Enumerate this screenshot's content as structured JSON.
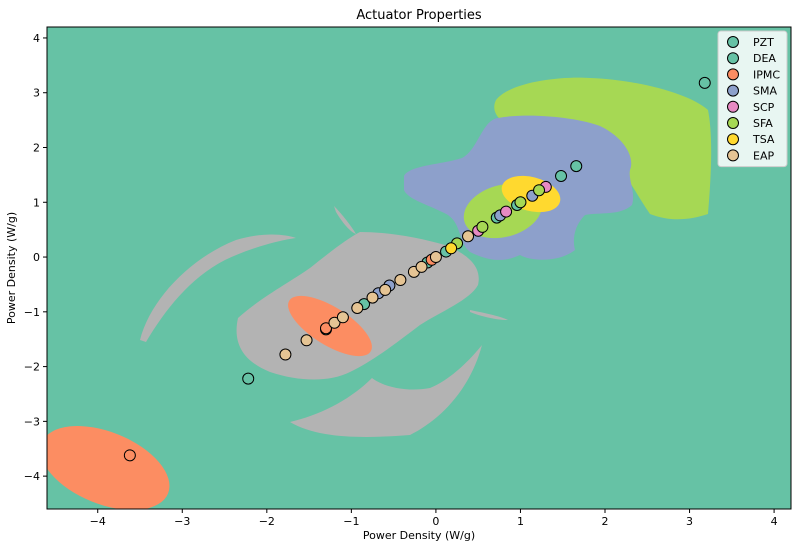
{
  "chart_data": {
    "type": "scatter",
    "title": "Actuator Properties",
    "xlabel": "Power Density (W/g)",
    "ylabel": "Power Density (W/g)",
    "xlim": [
      -4.6,
      4.2
    ],
    "ylim": [
      -4.6,
      4.2
    ],
    "xticks": [
      -4,
      -3,
      -2,
      -1,
      0,
      1,
      2,
      3,
      4
    ],
    "yticks": [
      -4,
      -3,
      -2,
      -1,
      0,
      1,
      2,
      3,
      4
    ],
    "tick_labels": [
      "−4",
      "−3",
      "−2",
      "−1",
      "0",
      "1",
      "2",
      "3",
      "4"
    ],
    "legend_position": "top-right",
    "background_color": "#66c2a5",
    "colors": {
      "PZT": "#66c2a5",
      "DEA": "#66c2a5",
      "IPMC": "#fc8d62",
      "SMA": "#8da0cb",
      "SCP": "#e78ac3",
      "SFA": "#a6d854",
      "TSA": "#ffd92f",
      "EAP": "#e5c494",
      "gray": "#b3b3b3"
    },
    "series": [
      {
        "name": "PZT",
        "color": "#66c2a5",
        "points": [
          [
            3.18,
            3.18
          ],
          [
            1.66,
            1.66
          ],
          [
            1.48,
            1.48
          ],
          [
            -2.22,
            -2.22
          ],
          [
            -0.1,
            -0.1
          ]
        ]
      },
      {
        "name": "DEA",
        "color": "#66c2a5",
        "points": [
          [
            0.12,
            0.1
          ],
          [
            0.96,
            0.95
          ],
          [
            -0.85,
            -0.86
          ],
          [
            0.72,
            0.72
          ],
          [
            -1.3,
            -1.32
          ]
        ]
      },
      {
        "name": "IPMC",
        "color": "#fc8d62",
        "points": [
          [
            -3.62,
            -3.62
          ],
          [
            -1.3,
            -1.3
          ],
          [
            -0.05,
            -0.05
          ]
        ]
      },
      {
        "name": "SMA",
        "color": "#8da0cb",
        "points": [
          [
            1.14,
            1.12
          ],
          [
            0.76,
            0.76
          ],
          [
            -0.55,
            -0.52
          ],
          [
            -0.68,
            -0.66
          ]
        ]
      },
      {
        "name": "SCP",
        "color": "#e78ac3",
        "points": [
          [
            1.3,
            1.28
          ],
          [
            0.5,
            0.48
          ],
          [
            0.83,
            0.83
          ]
        ]
      },
      {
        "name": "SFA",
        "color": "#a6d854",
        "points": [
          [
            1.22,
            1.22
          ],
          [
            0.55,
            0.55
          ],
          [
            0.25,
            0.25
          ],
          [
            1.0,
            1.0
          ]
        ]
      },
      {
        "name": "TSA",
        "color": "#ffd92f",
        "points": [
          [
            0.18,
            0.16
          ]
        ]
      },
      {
        "name": "EAP",
        "color": "#e5c494",
        "points": [
          [
            -1.78,
            -1.78
          ],
          [
            -1.53,
            -1.52
          ],
          [
            -1.2,
            -1.2
          ],
          [
            -1.1,
            -1.1
          ],
          [
            -0.93,
            -0.93
          ],
          [
            -0.75,
            -0.74
          ],
          [
            -0.6,
            -0.6
          ],
          [
            -0.42,
            -0.42
          ],
          [
            -0.26,
            -0.27
          ],
          [
            -0.17,
            -0.18
          ],
          [
            0.38,
            0.38
          ],
          [
            0.0,
            0.0
          ]
        ]
      }
    ]
  }
}
